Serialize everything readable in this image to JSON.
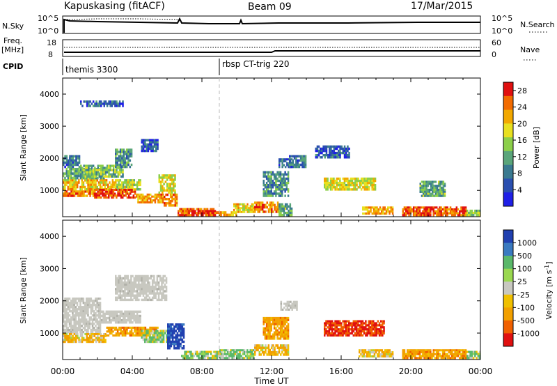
{
  "header": {
    "station": "Kapuskasing (fitACF)",
    "beam": "Beam 09",
    "date": "17/Mar/2015"
  },
  "top_panels": {
    "nsky_label": "N.Sky",
    "nsky_ticks": [
      "10^5",
      "10^0"
    ],
    "nsearch_label": "N.Search",
    "nsearch_ticks": [
      "10^5",
      "10^0"
    ],
    "freq_label_1": "Freq.",
    "freq_label_2": "[MHz]",
    "freq_ticks": [
      "18",
      "8"
    ],
    "nave_label": "Nave",
    "nave_ticks": [
      "60",
      "0"
    ],
    "cpid_label": "CPID",
    "cpid_segments": [
      {
        "label": "themis 3300",
        "start": "00:00"
      },
      {
        "label": "rbsp CT-trig 220",
        "start": "09:00"
      }
    ]
  },
  "chart_data": [
    {
      "type": "heatmap",
      "parameter": "Power",
      "ylabel": "Slant Range [km]",
      "xlabel": "Time UT",
      "x_ticks": [
        "00:00",
        "04:00",
        "08:00",
        "12:00",
        "16:00",
        "20:00",
        "00:00"
      ],
      "x_range_hours": [
        0,
        24
      ],
      "y_ticks": [
        1000,
        2000,
        3000,
        4000
      ],
      "ylim": [
        180,
        4500
      ],
      "colorbar": {
        "label": "Power [dB]",
        "ticks": [
          4,
          8,
          12,
          16,
          20,
          24,
          28
        ],
        "range": [
          0,
          30
        ]
      },
      "colors": [
        "#1f1fe6",
        "#2a4fb0",
        "#3a7a90",
        "#5aa57a",
        "#8ccf4a",
        "#e8e020",
        "#f2a800",
        "#f26b00",
        "#e01010"
      ],
      "regions": [
        {
          "t": [
            0.0,
            1.8
          ],
          "r": [
            800,
            1000
          ],
          "value": 24
        },
        {
          "t": [
            0.0,
            3.0
          ],
          "r": [
            1000,
            1350
          ],
          "value": 20
        },
        {
          "t": [
            0.0,
            2.5
          ],
          "r": [
            1350,
            1700
          ],
          "value": 12
        },
        {
          "t": [
            0.0,
            1.0
          ],
          "r": [
            1700,
            2100
          ],
          "value": 8
        },
        {
          "t": [
            1.0,
            3.5
          ],
          "r": [
            1400,
            1800
          ],
          "value": 14
        },
        {
          "t": [
            3.0,
            4.5
          ],
          "r": [
            1000,
            1350
          ],
          "value": 16
        },
        {
          "t": [
            3.0,
            4.0
          ],
          "r": [
            1700,
            2300
          ],
          "value": 10
        },
        {
          "t": [
            4.5,
            5.5
          ],
          "r": [
            2200,
            2600
          ],
          "value": 6
        },
        {
          "t": [
            1.8,
            4.2
          ],
          "r": [
            750,
            1050
          ],
          "value": 26
        },
        {
          "t": [
            4.2,
            5.8
          ],
          "r": [
            600,
            900
          ],
          "value": 22
        },
        {
          "t": [
            5.5,
            6.5
          ],
          "r": [
            900,
            1500
          ],
          "value": 18
        },
        {
          "t": [
            5.8,
            6.6
          ],
          "r": [
            500,
            900
          ],
          "value": 24
        },
        {
          "t": [
            6.6,
            8.8
          ],
          "r": [
            200,
            450
          ],
          "value": 26
        },
        {
          "t": [
            8.8,
            10.0
          ],
          "r": [
            200,
            350
          ],
          "value": 22
        },
        {
          "t": [
            9.8,
            11.0
          ],
          "r": [
            300,
            600
          ],
          "value": 20
        },
        {
          "t": [
            11.0,
            12.4
          ],
          "r": [
            300,
            650
          ],
          "value": 24
        },
        {
          "t": [
            12.4,
            13.2
          ],
          "r": [
            200,
            600
          ],
          "value": 12
        },
        {
          "t": [
            12.4,
            13.2
          ],
          "r": [
            1700,
            2000
          ],
          "value": 8
        },
        {
          "t": [
            11.5,
            13.0
          ],
          "r": [
            800,
            1600
          ],
          "value": 10
        },
        {
          "t": [
            15.0,
            18.0
          ],
          "r": [
            1000,
            1400
          ],
          "value": 18
        },
        {
          "t": [
            17.2,
            19.0
          ],
          "r": [
            250,
            500
          ],
          "value": 22
        },
        {
          "t": [
            19.5,
            23.2
          ],
          "r": [
            200,
            500
          ],
          "value": 26
        },
        {
          "t": [
            23.2,
            24.0
          ],
          "r": [
            200,
            400
          ],
          "value": 14
        },
        {
          "t": [
            20.5,
            22.0
          ],
          "r": [
            800,
            1300
          ],
          "value": 12
        },
        {
          "t": [
            1.0,
            3.5
          ],
          "r": [
            3600,
            3800
          ],
          "value": 6
        },
        {
          "t": [
            13.0,
            14.0
          ],
          "r": [
            1700,
            2100
          ],
          "value": 8
        },
        {
          "t": [
            14.5,
            16.5
          ],
          "r": [
            2000,
            2400
          ],
          "value": 6
        }
      ]
    },
    {
      "type": "heatmap",
      "parameter": "Velocity",
      "ylabel": "Slant Range [km]",
      "xlabel": "Time UT",
      "x_ticks": [
        "00:00",
        "04:00",
        "08:00",
        "12:00",
        "16:00",
        "20:00",
        "00:00"
      ],
      "x_range_hours": [
        0,
        24
      ],
      "y_ticks": [
        1000,
        2000,
        3000,
        4000
      ],
      "ylim": [
        180,
        4500
      ],
      "colorbar": {
        "label": "Velocity [m s^-1]",
        "ticks": [
          1000,
          500,
          100,
          25,
          -25,
          -100,
          -500,
          -1000
        ]
      },
      "colors": [
        "#2040b0",
        "#3a7ac0",
        "#5ab86a",
        "#9ad850",
        "#c8c8c0",
        "#f0c000",
        "#f2a000",
        "#f06000",
        "#e01010"
      ],
      "regions": [
        {
          "t": [
            0.0,
            2.2
          ],
          "r": [
            1000,
            2100
          ],
          "value_class": "ground"
        },
        {
          "t": [
            2.2,
            4.5
          ],
          "r": [
            1300,
            1700
          ],
          "value_class": "ground"
        },
        {
          "t": [
            3.0,
            6.0
          ],
          "r": [
            2000,
            2800
          ],
          "value_class": "ground"
        },
        {
          "t": [
            0.0,
            2.5
          ],
          "r": [
            700,
            1000
          ],
          "value_class": "-100"
        },
        {
          "t": [
            2.5,
            5.5
          ],
          "r": [
            900,
            1200
          ],
          "value_class": "-200"
        },
        {
          "t": [
            4.5,
            6.2
          ],
          "r": [
            700,
            1100
          ],
          "value_class": "50"
        },
        {
          "t": [
            6.0,
            7.0
          ],
          "r": [
            500,
            1300
          ],
          "value_class": "800"
        },
        {
          "t": [
            6.8,
            9.0
          ],
          "r": [
            200,
            450
          ],
          "value_class": "60"
        },
        {
          "t": [
            9.0,
            11.0
          ],
          "r": [
            200,
            500
          ],
          "value_class": "100"
        },
        {
          "t": [
            11.0,
            13.0
          ],
          "r": [
            300,
            650
          ],
          "value_class": "-100"
        },
        {
          "t": [
            11.5,
            13.0
          ],
          "r": [
            800,
            1500
          ],
          "value_class": "-200"
        },
        {
          "t": [
            12.5,
            13.5
          ],
          "r": [
            1700,
            2000
          ],
          "value_class": "ground"
        },
        {
          "t": [
            15.0,
            18.5
          ],
          "r": [
            900,
            1400
          ],
          "value_class": "-700"
        },
        {
          "t": [
            17.0,
            19.0
          ],
          "r": [
            250,
            500
          ],
          "value_class": "-100"
        },
        {
          "t": [
            19.5,
            23.2
          ],
          "r": [
            200,
            500
          ],
          "value_class": "-200"
        },
        {
          "t": [
            23.2,
            24.0
          ],
          "r": [
            200,
            450
          ],
          "value_class": "80"
        }
      ]
    }
  ]
}
